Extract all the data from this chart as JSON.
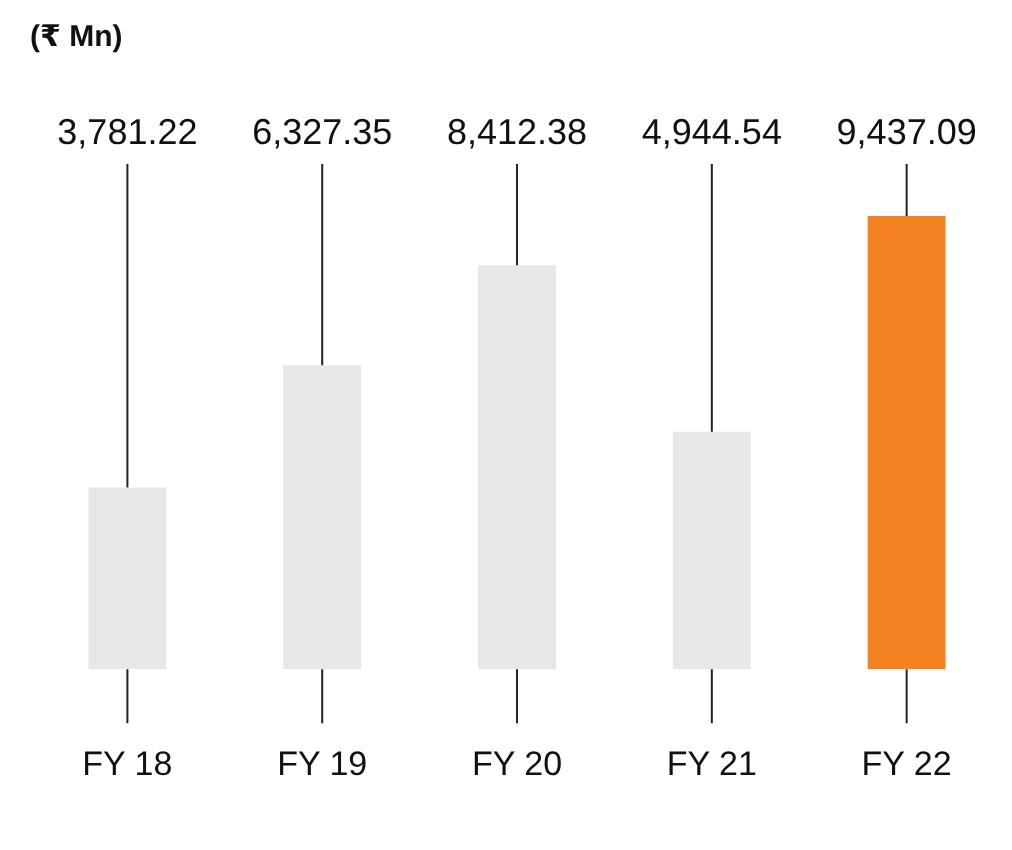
{
  "chart_data": {
    "type": "bar",
    "title": "(₹ Mn)",
    "categories": [
      "FY 18",
      "FY 19",
      "FY 20",
      "FY 21",
      "FY 22"
    ],
    "values": [
      3781.22,
      6327.35,
      8412.38,
      4944.54,
      9437.09
    ],
    "colors": [
      "#e6e7e8",
      "#e6e7e8",
      "#e6e7e8",
      "#e6e7e8",
      "#f58220"
    ],
    "value_labels": [
      "3,781.22",
      "6,327.35",
      "8,412.38",
      "4,944.54",
      "9,437.09"
    ],
    "legend": false
  }
}
